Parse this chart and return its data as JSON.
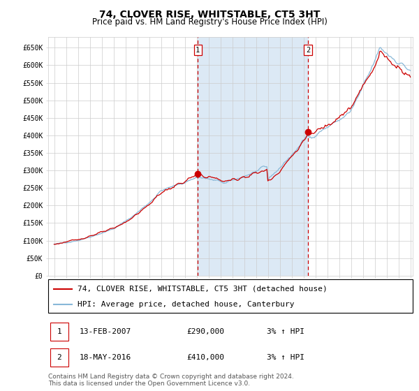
{
  "title": "74, CLOVER RISE, WHITSTABLE, CT5 3HT",
  "subtitle": "Price paid vs. HM Land Registry's House Price Index (HPI)",
  "background_color": "#ffffff",
  "plot_bg_color": "#ffffff",
  "shaded_region_color": "#dce9f5",
  "grid_color": "#cccccc",
  "hpi_line_color": "#88b8d8",
  "price_line_color": "#cc0000",
  "dashed_line_color": "#cc0000",
  "marker_color": "#cc0000",
  "ylim": [
    0,
    680000
  ],
  "yticks": [
    0,
    50000,
    100000,
    150000,
    200000,
    250000,
    300000,
    350000,
    400000,
    450000,
    500000,
    550000,
    600000,
    650000
  ],
  "start_year": 1995,
  "end_year": 2025,
  "purchase1_year": 2007.1,
  "purchase1_price": 290000,
  "purchase2_year": 2016.38,
  "purchase2_price": 410000,
  "legend_label_price": "74, CLOVER RISE, WHITSTABLE, CT5 3HT (detached house)",
  "legend_label_hpi": "HPI: Average price, detached house, Canterbury",
  "annotation1_label": "1",
  "annotation1_date": "13-FEB-2007",
  "annotation1_price": "£290,000",
  "annotation1_hpi": "3% ↑ HPI",
  "annotation2_label": "2",
  "annotation2_date": "18-MAY-2016",
  "annotation2_price": "£410,000",
  "annotation2_hpi": "3% ↑ HPI",
  "footer": "Contains HM Land Registry data © Crown copyright and database right 2024.\nThis data is licensed under the Open Government Licence v3.0.",
  "title_fontsize": 10,
  "subtitle_fontsize": 8.5,
  "tick_fontsize": 7,
  "legend_fontsize": 8,
  "annotation_fontsize": 8,
  "footer_fontsize": 6.5
}
